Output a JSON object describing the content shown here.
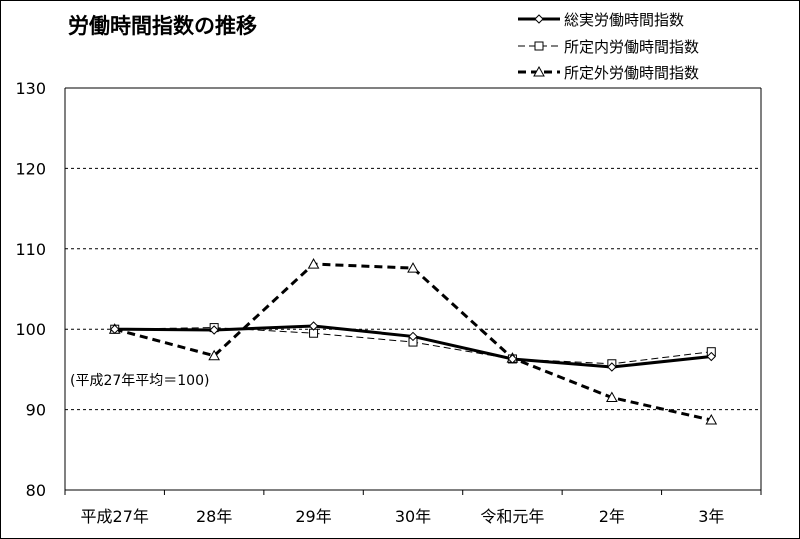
{
  "chart_data": {
    "type": "line",
    "title": "労働時間指数の推移",
    "categories": [
      "平成27年",
      "28年",
      "29年",
      "30年",
      "令和元年",
      "2年",
      "3年"
    ],
    "ylim": [
      80,
      130
    ],
    "yticks": [
      "130",
      "120",
      "110",
      "100",
      "90",
      "80"
    ],
    "grid": true,
    "legend_position": "top-right",
    "annotation": "(平成27年平均＝100)",
    "series": [
      {
        "name": "総実労働時間指数",
        "values": [
          100.0,
          99.9,
          100.4,
          99.1,
          96.3,
          95.3,
          96.6
        ],
        "style": "solid-thick",
        "marker": "diamond"
      },
      {
        "name": "所定内労働時間指数",
        "values": [
          100.0,
          100.2,
          99.5,
          98.4,
          96.3,
          95.7,
          97.2
        ],
        "style": "dashed-thin",
        "marker": "square"
      },
      {
        "name": "所定外労働時間指数",
        "values": [
          100.0,
          96.7,
          108.1,
          107.6,
          96.4,
          91.5,
          88.7
        ],
        "style": "dashed-thick",
        "marker": "triangle"
      }
    ]
  }
}
